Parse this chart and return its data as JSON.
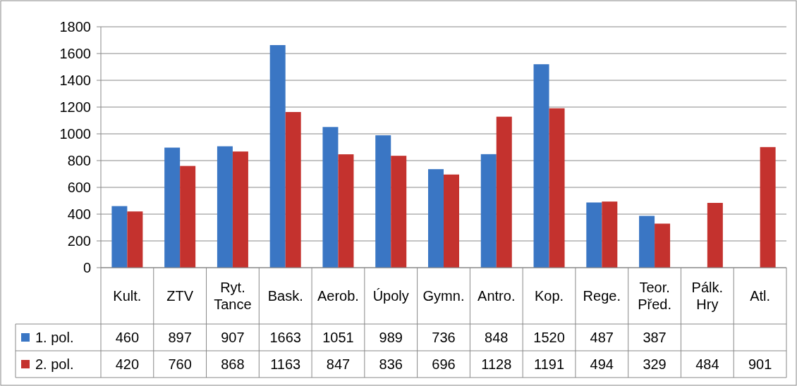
{
  "chart_data": {
    "type": "bar",
    "categories": [
      "Kult.",
      "ZTV",
      "Ryt. Tance",
      "Bask.",
      "Aerob.",
      "Úpoly",
      "Gymn.",
      "Antro.",
      "Kop.",
      "Rege.",
      "Teor. Před.",
      "Pálk. Hry",
      "Atl."
    ],
    "series": [
      {
        "name": "1. pol.",
        "color": "#3a76c4",
        "values": [
          460,
          897,
          907,
          1663,
          1051,
          989,
          736,
          848,
          1520,
          487,
          387,
          null,
          null
        ]
      },
      {
        "name": "2. pol.",
        "color": "#c4322e",
        "values": [
          420,
          760,
          868,
          1163,
          847,
          836,
          696,
          1128,
          1191,
          494,
          329,
          484,
          901
        ]
      }
    ],
    "ylim": [
      0,
      1800
    ],
    "yticks": [
      0,
      200,
      400,
      600,
      800,
      1000,
      1200,
      1400,
      1600,
      1800
    ],
    "grid": "y",
    "data_labels": true,
    "legend": "bottom"
  }
}
